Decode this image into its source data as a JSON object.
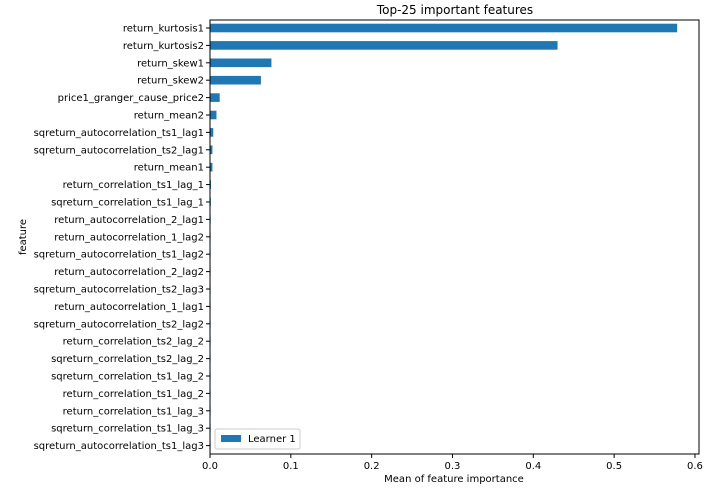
{
  "chart_data": {
    "type": "bar",
    "orientation": "horizontal",
    "title": "Top-25 important features",
    "xlabel": "Mean of feature importance",
    "ylabel": "feature",
    "xlim": [
      0,
      0.605
    ],
    "xticks": [
      0.0,
      0.1,
      0.2,
      0.3,
      0.4,
      0.5,
      0.6
    ],
    "xtick_labels": [
      "0.0",
      "0.1",
      "0.2",
      "0.3",
      "0.4",
      "0.5",
      "0.6"
    ],
    "grid": false,
    "legend_position": "lower-left",
    "categories": [
      "return_kurtosis1",
      "return_kurtosis2",
      "return_skew1",
      "return_skew2",
      "price1_granger_cause_price2",
      "return_mean2",
      "sqreturn_autocorrelation_ts1_lag1",
      "sqreturn_autocorrelation_ts2_lag1",
      "return_mean1",
      "return_correlation_ts1_lag_1",
      "sqreturn_correlation_ts1_lag_1",
      "return_autocorrelation_2_lag1",
      "return_autocorrelation_1_lag2",
      "sqreturn_autocorrelation_ts1_lag2",
      "return_autocorrelation_2_lag2",
      "sqreturn_autocorrelation_ts2_lag3",
      "return_autocorrelation_1_lag1",
      "sqreturn_autocorrelation_ts2_lag2",
      "return_correlation_ts2_lag_2",
      "sqreturn_correlation_ts2_lag_2",
      "sqreturn_correlation_ts1_lag_2",
      "return_correlation_ts1_lag_2",
      "return_correlation_ts1_lag_3",
      "sqreturn_correlation_ts1_lag_3",
      "sqreturn_autocorrelation_ts1_lag3"
    ],
    "series": [
      {
        "name": "Learner 1",
        "color": "#1f77b4",
        "values": [
          0.578,
          0.43,
          0.076,
          0.063,
          0.012,
          0.008,
          0.004,
          0.003,
          0.003,
          0.0012,
          0.001,
          0.0008,
          0.0007,
          0.0006,
          0.0006,
          0.0005,
          0.0005,
          0.0004,
          0.0004,
          0.0003,
          0.0003,
          0.0003,
          0.0002,
          0.0002,
          0.0002
        ]
      }
    ]
  }
}
